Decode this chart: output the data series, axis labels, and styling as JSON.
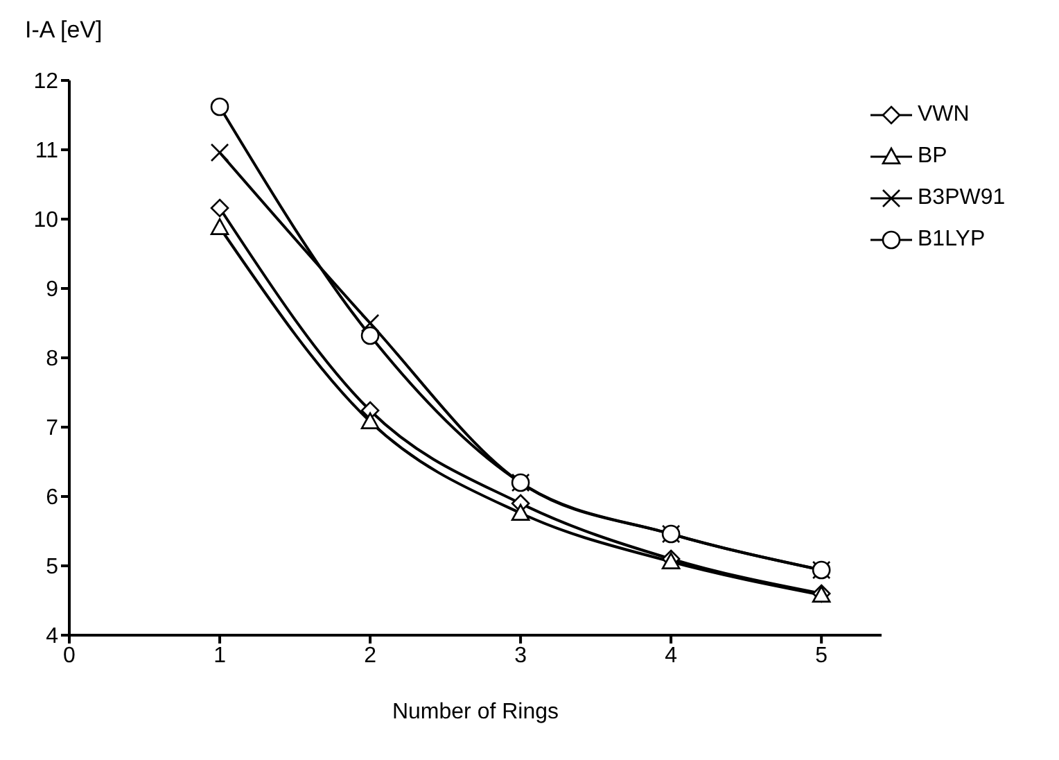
{
  "chart_data": {
    "type": "line",
    "xlabel": "Number of Rings",
    "ylabel": "I-A [eV]",
    "x": [
      1,
      2,
      3,
      4,
      5
    ],
    "xlim": [
      0,
      5.4
    ],
    "xticks": [
      0,
      1,
      2,
      3,
      4,
      5
    ],
    "ylim": [
      4,
      12
    ],
    "yticks": [
      4,
      5,
      6,
      7,
      8,
      9,
      10,
      11,
      12
    ],
    "grid": false,
    "legend": "top right",
    "line_style": "solid",
    "series": [
      {
        "name": "VWN",
        "color": "#000000",
        "marker": "diamond",
        "values": [
          10.16,
          7.24,
          5.9,
          5.1,
          4.6
        ]
      },
      {
        "name": "BP",
        "color": "#000000",
        "marker": "triangle",
        "values": [
          9.88,
          7.08,
          5.76,
          5.06,
          4.58
        ]
      },
      {
        "name": "B3PW91",
        "color": "#000000",
        "marker": "cross",
        "values": [
          10.96,
          8.5,
          6.2,
          5.46,
          4.94
        ]
      },
      {
        "name": "B1LYP",
        "color": "#000000",
        "marker": "circle",
        "values": [
          11.62,
          8.32,
          6.2,
          5.46,
          4.94
        ]
      }
    ]
  }
}
